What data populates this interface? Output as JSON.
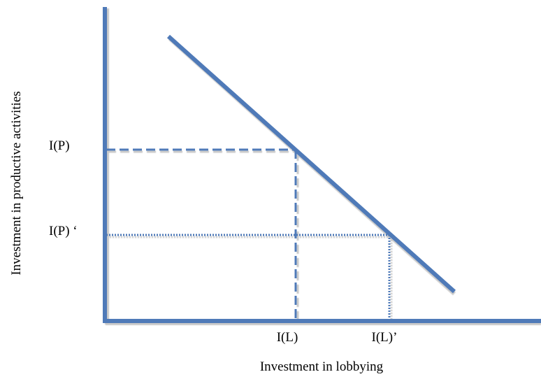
{
  "diagram": {
    "axes": {
      "x_label": "Investment in lobbying",
      "y_label": "Investment in productive activities"
    },
    "points": {
      "ip_label": "I(P)",
      "ip_prime_label": "I(P) ‘",
      "il_label": "I(L)",
      "il_prime_label": "I(L)’"
    },
    "line_style": {
      "first_guides": "dashed",
      "second_guides": "dotted"
    },
    "colors": {
      "line": "#4f7ab8",
      "shadow": "#c8c8c8"
    }
  }
}
